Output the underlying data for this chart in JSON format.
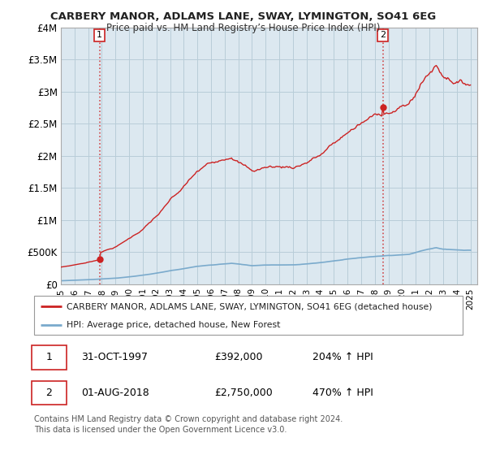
{
  "title": "CARBERY MANOR, ADLAMS LANE, SWAY, LYMINGTON, SO41 6EG",
  "subtitle": "Price paid vs. HM Land Registry’s House Price Index (HPI)",
  "ylim": [
    0,
    4000000
  ],
  "yticks": [
    0,
    500000,
    1000000,
    1500000,
    2000000,
    2500000,
    3000000,
    3500000,
    4000000
  ],
  "ytick_labels": [
    "£0",
    "£500K",
    "£1M",
    "£1.5M",
    "£2M",
    "£2.5M",
    "£3M",
    "£3.5M",
    "£4M"
  ],
  "xlim": [
    1995.0,
    2025.5
  ],
  "background_color": "#ffffff",
  "plot_bg_color": "#dce8f0",
  "grid_color": "#b8cdd8",
  "sale1_date_num": 1997.83,
  "sale1_price": 392000,
  "sale1_label": "1",
  "sale2_date_num": 2018.58,
  "sale2_price": 2750000,
  "sale2_label": "2",
  "legend_line1": "CARBERY MANOR, ADLAMS LANE, SWAY, LYMINGTON, SO41 6EG (detached house)",
  "legend_line2": "HPI: Average price, detached house, New Forest",
  "table_row1": [
    "1",
    "31-OCT-1997",
    "£392,000",
    "204% ↑ HPI"
  ],
  "table_row2": [
    "2",
    "01-AUG-2018",
    "£2,750,000",
    "470% ↑ HPI"
  ],
  "footer": "Contains HM Land Registry data © Crown copyright and database right 2024.\nThis data is licensed under the Open Government Licence v3.0.",
  "red_line_color": "#cc2222",
  "blue_line_color": "#7aaacc",
  "dashed_line_color": "#cc2222"
}
